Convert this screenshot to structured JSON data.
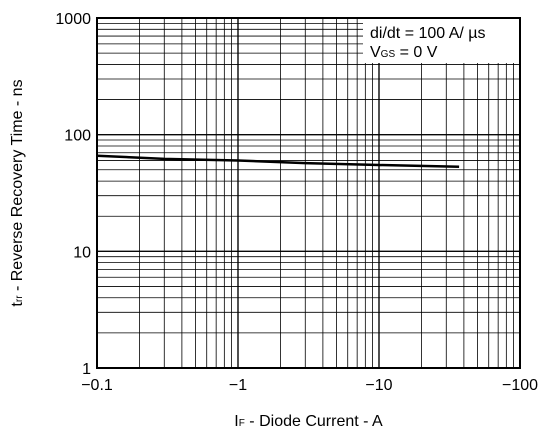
{
  "chart_data": {
    "type": "line",
    "x_scale": "log",
    "y_scale": "log",
    "xlim": [
      -0.1,
      -100
    ],
    "ylim": [
      1,
      1000
    ],
    "x_ticks": [
      {
        "value": -0.1,
        "label": "−0.1"
      },
      {
        "value": -1,
        "label": "−1"
      },
      {
        "value": -10,
        "label": "−10"
      },
      {
        "value": -100,
        "label": "−100"
      }
    ],
    "y_ticks": [
      {
        "value": 1,
        "label": "1"
      },
      {
        "value": 10,
        "label": "10"
      },
      {
        "value": 100,
        "label": "100"
      },
      {
        "value": 1000,
        "label": "1000"
      }
    ],
    "xlabel": {
      "main": "I",
      "sub": "F",
      "rest": " - Diode Current - A"
    },
    "ylabel": {
      "main": "t",
      "sub": "rr",
      "rest": " - Reverse Recovery Time - ns"
    },
    "grid": true,
    "annotations": {
      "line1": "di/dt = 100 A/ µs",
      "line2_main": "V",
      "line2_sub": "GS",
      "line2_rest": " = 0 V"
    },
    "series": [
      {
        "x": [
          -0.1,
          -0.3,
          -1,
          -3,
          -10,
          -37
        ],
        "y": [
          66,
          62,
          60,
          57,
          55,
          53
        ]
      }
    ]
  }
}
